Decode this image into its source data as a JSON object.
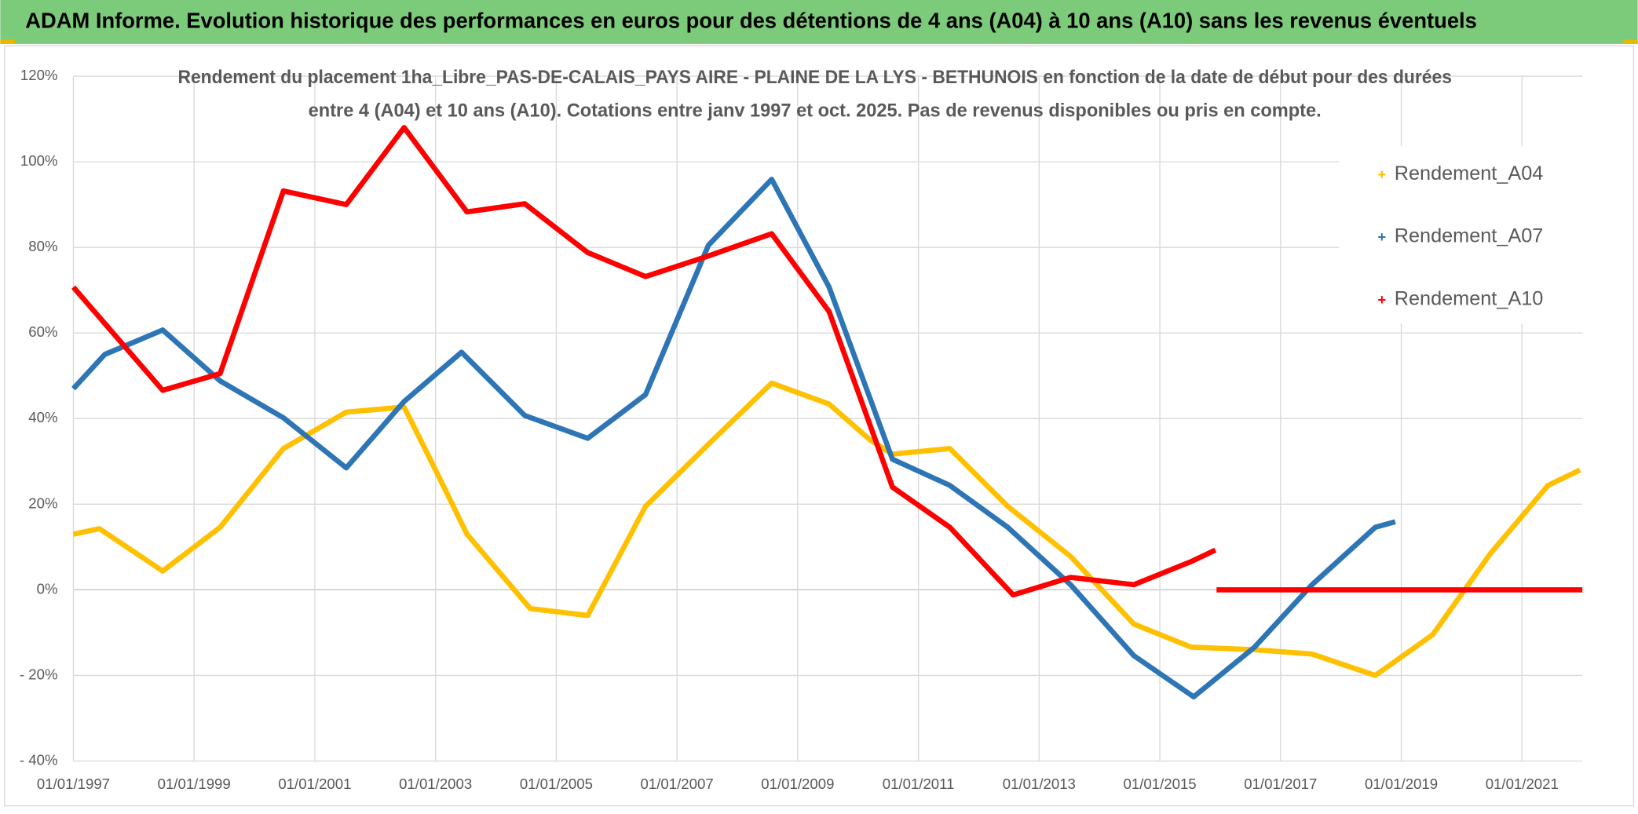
{
  "header": {
    "title": "ADAM Informe. Evolution historique des performances en euros pour des détentions de 4 ans (A04) à 10 ans (A10) sans les revenus éventuels"
  },
  "chart_data": {
    "type": "line",
    "title": [
      "Rendement du placement 1ha_Libre_PAS-DE-CALAIS_PAYS AIRE - PLAINE DE LA LYS - BETHUNOIS en fonction de la date de début pour des durées",
      "entre 4 (A04) et 10 ans (A10). Cotations entre janv 1997 et oct. 2025. Pas de revenus disponibles ou pris en compte."
    ],
    "xlim": [
      1997,
      2022
    ],
    "xticks": [
      {
        "value": 1997,
        "label": "01/01/1997"
      },
      {
        "value": 1999,
        "label": "01/01/1999"
      },
      {
        "value": 2001,
        "label": "01/01/2001"
      },
      {
        "value": 2003,
        "label": "01/01/2003"
      },
      {
        "value": 2005,
        "label": "01/01/2005"
      },
      {
        "value": 2007,
        "label": "01/01/2007"
      },
      {
        "value": 2009,
        "label": "01/01/2009"
      },
      {
        "value": 2011,
        "label": "01/01/2011"
      },
      {
        "value": 2013,
        "label": "01/01/2013"
      },
      {
        "value": 2015,
        "label": "01/01/2015"
      },
      {
        "value": 2017,
        "label": "01/01/2017"
      },
      {
        "value": 2019,
        "label": "01/01/2019"
      },
      {
        "value": 2021,
        "label": "01/01/2021"
      }
    ],
    "ylim": [
      -40,
      120
    ],
    "yticks": [
      {
        "value": -40,
        "label": "- 40%"
      },
      {
        "value": -20,
        "label": "- 20%"
      },
      {
        "value": 0,
        "label": "0%"
      },
      {
        "value": 20,
        "label": "20%"
      },
      {
        "value": 40,
        "label": "40%"
      },
      {
        "value": 60,
        "label": "60%"
      },
      {
        "value": 80,
        "label": "80%"
      },
      {
        "value": 100,
        "label": "100%"
      },
      {
        "value": 120,
        "label": "120%"
      }
    ],
    "grid": true,
    "legend": "right",
    "series": [
      {
        "name": "Rendement_A04",
        "color": "#ffc000",
        "x": [
          1997,
          1997.43,
          1998.48,
          1999.43,
          2000.48,
          2001.52,
          2002.48,
          2003,
          2003.52,
          2004.57,
          2005.52,
          2006.48,
          2007.52,
          2008.57,
          2009.52,
          2010.2,
          2010.57,
          2011.52,
          2012.48,
          2013.52,
          2014.57,
          2015.52,
          2016.57,
          2017.52,
          2018.57,
          2019.52,
          2020.48,
          2021.43,
          2021.96
        ],
        "values": [
          13,
          14.3,
          4.4,
          14.6,
          33,
          41.5,
          42.7,
          28,
          13,
          -4.4,
          -6,
          19.5,
          34,
          48.3,
          43.4,
          35,
          31.7,
          33,
          19.5,
          7.8,
          -8,
          -13.4,
          -14,
          -15,
          -20,
          -10.5,
          8.5,
          24.4,
          28
        ]
      },
      {
        "name": "Rendement_A07",
        "color": "#2e75b6",
        "x": [
          1997,
          1997.52,
          1998.48,
          1999.43,
          2000.48,
          2001.52,
          2002.48,
          2003.43,
          2004.48,
          2005.52,
          2006.48,
          2007.52,
          2008.57,
          2009.52,
          2010.57,
          2011.52,
          2012.48,
          2013.52,
          2014.57,
          2015.56,
          2016.57,
          2017.52,
          2018.57,
          2018.9
        ],
        "values": [
          47,
          55,
          60.7,
          48.8,
          40.2,
          28.5,
          44,
          55.5,
          40.7,
          35.4,
          45.6,
          80.5,
          95.9,
          70.7,
          30.5,
          24.4,
          14.6,
          1.2,
          -15.4,
          -25,
          -13.4,
          1.2,
          14.6,
          15.9
        ]
      },
      {
        "name": "Rendement_A10",
        "color": "#ff0000",
        "x": [
          1997,
          1998.48,
          1999.43,
          2000.48,
          2001.52,
          2002.48,
          2003.52,
          2004.48,
          2005.52,
          2006.48,
          2007.52,
          2008.57,
          2009.52,
          2010.57,
          2011.52,
          2012.57,
          2013.52,
          2014.57,
          2015.52,
          2015.92,
          2015.93,
          2015.94,
          2022
        ],
        "values": [
          70.7,
          46.6,
          50.5,
          93.2,
          90,
          108,
          88.3,
          90.2,
          78.8,
          73.2,
          78,
          83.2,
          65,
          24,
          14.6,
          -1.2,
          2.9,
          1.2,
          6.6,
          9.3,
          null,
          0,
          0
        ]
      }
    ]
  }
}
